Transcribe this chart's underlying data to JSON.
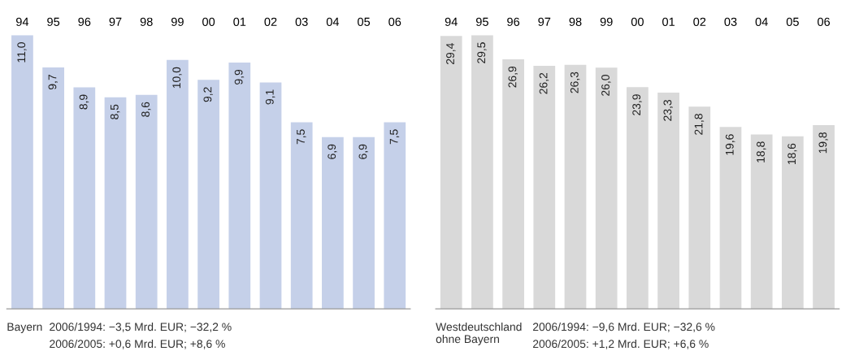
{
  "chart_data": [
    {
      "type": "bar",
      "categories": [
        "94",
        "95",
        "96",
        "97",
        "98",
        "99",
        "00",
        "01",
        "02",
        "03",
        "04",
        "05",
        "06"
      ],
      "color": "#c5d0e9",
      "values": [
        11.0,
        9.7,
        8.9,
        8.5,
        8.6,
        10.0,
        9.2,
        9.9,
        9.1,
        7.5,
        6.9,
        6.9,
        7.5
      ],
      "value_labels": [
        "11,0",
        "9,7",
        "8,9",
        "8,5",
        "8,6",
        "10,0",
        "9,2",
        "9,9",
        "9,1",
        "7,5",
        "6,9",
        "6,9",
        "7,5"
      ],
      "tick_labels": "x",
      "grid": false,
      "legend": false,
      "annotations": [
        "Bayern",
        "2006/1994: −3,5 Mrd. EUR; −32,2 %",
        "2006/2005: +0,6 Mrd. EUR; +8,6 %"
      ]
    },
    {
      "type": "bar",
      "categories": [
        "94",
        "95",
        "96",
        "97",
        "98",
        "99",
        "00",
        "01",
        "02",
        "03",
        "04",
        "05",
        "06"
      ],
      "color": "#d9d9d9",
      "values": [
        29.4,
        29.5,
        26.9,
        26.2,
        26.3,
        26.0,
        23.9,
        23.3,
        21.8,
        19.6,
        18.8,
        18.6,
        19.8
      ],
      "value_labels": [
        "29,4",
        "29,5",
        "26,9",
        "26,2",
        "26,3",
        "26,0",
        "23,9",
        "23,3",
        "21,8",
        "19,6",
        "18,8",
        "18,6",
        "19,8"
      ],
      "tick_labels": "x",
      "grid": false,
      "legend": false,
      "annotations": [
        "Westdeutschland\nohne Bayern",
        "2006/1994: −9,6 Mrd. EUR; −32,6 %",
        "2006/2005: +1,2 Mrd. EUR; +6,6 %"
      ]
    }
  ]
}
